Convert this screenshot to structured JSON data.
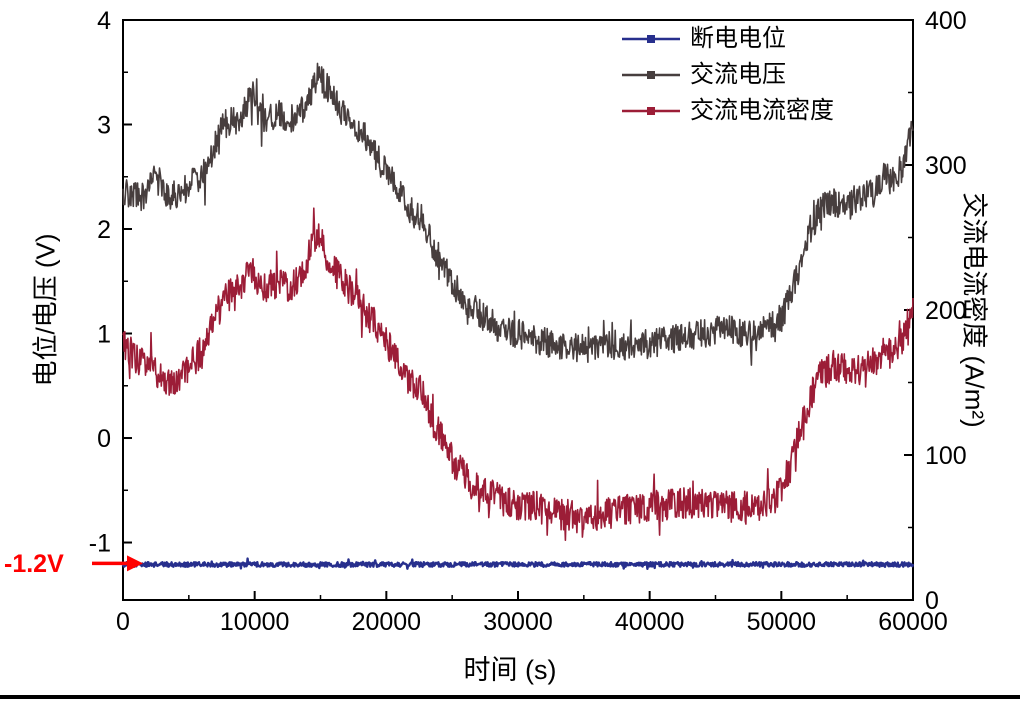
{
  "figure": {
    "background": "#FFFFFF"
  },
  "chart_data": {
    "type": "line",
    "title": "",
    "xlabel": "时间 (s)",
    "ylabel_left": "电位/电压 (V)",
    "ylabel_right": "交流电流密度 (A/m²)",
    "grid": false,
    "legend_position": "top-right-inside",
    "x_range": [
      0,
      60000
    ],
    "y_left_range": [
      -1.55,
      4
    ],
    "y_right_range": [
      0,
      400
    ],
    "x_ticks": [
      0,
      10000,
      20000,
      30000,
      40000,
      50000,
      60000
    ],
    "x_minor_ticks": [
      5000,
      15000,
      25000,
      35000,
      45000,
      55000
    ],
    "y_left_ticks": [
      -1,
      0,
      1,
      2,
      3,
      4
    ],
    "y_left_minor_ticks": [
      -0.5,
      0.5,
      1.5,
      2.5,
      3.5
    ],
    "y_right_ticks": [
      0,
      100,
      200,
      300,
      400
    ],
    "y_right_minor_ticks": [
      50,
      150,
      250,
      350
    ],
    "annotation": {
      "text": "-1.2V",
      "value": -1.2,
      "color": "#FF0000"
    },
    "series": [
      {
        "name": "断电电位",
        "axis": "left",
        "color": "#272F8D",
        "width": 2.4,
        "noise": 0.022,
        "marker": "square",
        "keypoints": [
          [
            0,
            -1.21
          ],
          [
            60000,
            -1.21
          ]
        ]
      },
      {
        "name": "交流电压",
        "axis": "left",
        "color": "#473E3E",
        "width": 1.6,
        "noise": 0.14,
        "marker": "square",
        "keypoints": [
          [
            0,
            2.35
          ],
          [
            1500,
            2.3
          ],
          [
            2500,
            2.5
          ],
          [
            3500,
            2.3
          ],
          [
            5000,
            2.4
          ],
          [
            6500,
            2.6
          ],
          [
            7500,
            3.0
          ],
          [
            9000,
            3.05
          ],
          [
            9800,
            3.3
          ],
          [
            10500,
            3.05
          ],
          [
            12000,
            3.1
          ],
          [
            13000,
            3.05
          ],
          [
            14000,
            3.2
          ],
          [
            14800,
            3.48
          ],
          [
            15500,
            3.35
          ],
          [
            16500,
            3.15
          ],
          [
            18000,
            2.95
          ],
          [
            19000,
            2.75
          ],
          [
            20000,
            2.55
          ],
          [
            21000,
            2.35
          ],
          [
            22000,
            2.15
          ],
          [
            22800,
            2.1
          ],
          [
            23500,
            1.85
          ],
          [
            24500,
            1.6
          ],
          [
            25500,
            1.4
          ],
          [
            26500,
            1.25
          ],
          [
            27500,
            1.15
          ],
          [
            28500,
            1.05
          ],
          [
            30000,
            1.0
          ],
          [
            32000,
            0.92
          ],
          [
            34000,
            0.88
          ],
          [
            35000,
            0.85
          ],
          [
            36000,
            0.85
          ],
          [
            37000,
            0.9
          ],
          [
            38000,
            0.88
          ],
          [
            39000,
            0.9
          ],
          [
            40000,
            0.9
          ],
          [
            41000,
            0.92
          ],
          [
            42000,
            0.95
          ],
          [
            43000,
            0.98
          ],
          [
            44000,
            1.0
          ],
          [
            45000,
            1.02
          ],
          [
            46000,
            1.05
          ],
          [
            47000,
            1.0
          ],
          [
            48000,
            0.98
          ],
          [
            49000,
            1.05
          ],
          [
            50000,
            1.15
          ],
          [
            50800,
            1.4
          ],
          [
            51500,
            1.7
          ],
          [
            52200,
            2.0
          ],
          [
            53000,
            2.2
          ],
          [
            54000,
            2.25
          ],
          [
            55000,
            2.2
          ],
          [
            56000,
            2.3
          ],
          [
            57000,
            2.35
          ],
          [
            57800,
            2.5
          ],
          [
            58500,
            2.45
          ],
          [
            59200,
            2.6
          ],
          [
            60000,
            3.0
          ]
        ]
      },
      {
        "name": "交流电流密度",
        "axis": "right",
        "color": "#9C1D37",
        "width": 1.6,
        "noise": 11,
        "marker": "square",
        "keypoints": [
          [
            0,
            178
          ],
          [
            1000,
            165
          ],
          [
            2000,
            160
          ],
          [
            3000,
            152
          ],
          [
            4000,
            150
          ],
          [
            5000,
            160
          ],
          [
            6000,
            172
          ],
          [
            7000,
            195
          ],
          [
            8000,
            210
          ],
          [
            9000,
            218
          ],
          [
            9800,
            228
          ],
          [
            10500,
            215
          ],
          [
            11500,
            218
          ],
          [
            12500,
            215
          ],
          [
            13500,
            222
          ],
          [
            14800,
            255
          ],
          [
            15500,
            238
          ],
          [
            16500,
            222
          ],
          [
            18000,
            205
          ],
          [
            19000,
            192
          ],
          [
            20000,
            178
          ],
          [
            21000,
            162
          ],
          [
            22000,
            148
          ],
          [
            22800,
            143
          ],
          [
            23500,
            125
          ],
          [
            24500,
            105
          ],
          [
            25500,
            90
          ],
          [
            26500,
            80
          ],
          [
            27500,
            74
          ],
          [
            28500,
            70
          ],
          [
            30000,
            66
          ],
          [
            31000,
            65
          ],
          [
            32000,
            63
          ],
          [
            33000,
            60
          ],
          [
            34000,
            58
          ],
          [
            35000,
            55
          ],
          [
            36000,
            56
          ],
          [
            37000,
            60
          ],
          [
            38000,
            62
          ],
          [
            39000,
            63
          ],
          [
            40000,
            64
          ],
          [
            41000,
            65
          ],
          [
            42000,
            66
          ],
          [
            43000,
            67
          ],
          [
            44000,
            68
          ],
          [
            45000,
            66
          ],
          [
            46000,
            64
          ],
          [
            47000,
            65
          ],
          [
            48000,
            64
          ],
          [
            49000,
            68
          ],
          [
            50000,
            74
          ],
          [
            50800,
            95
          ],
          [
            51500,
            118
          ],
          [
            52200,
            140
          ],
          [
            53000,
            155
          ],
          [
            54000,
            162
          ],
          [
            55000,
            158
          ],
          [
            56000,
            160
          ],
          [
            57000,
            163
          ],
          [
            57800,
            172
          ],
          [
            58500,
            168
          ],
          [
            59200,
            178
          ],
          [
            60000,
            205
          ]
        ]
      }
    ]
  }
}
